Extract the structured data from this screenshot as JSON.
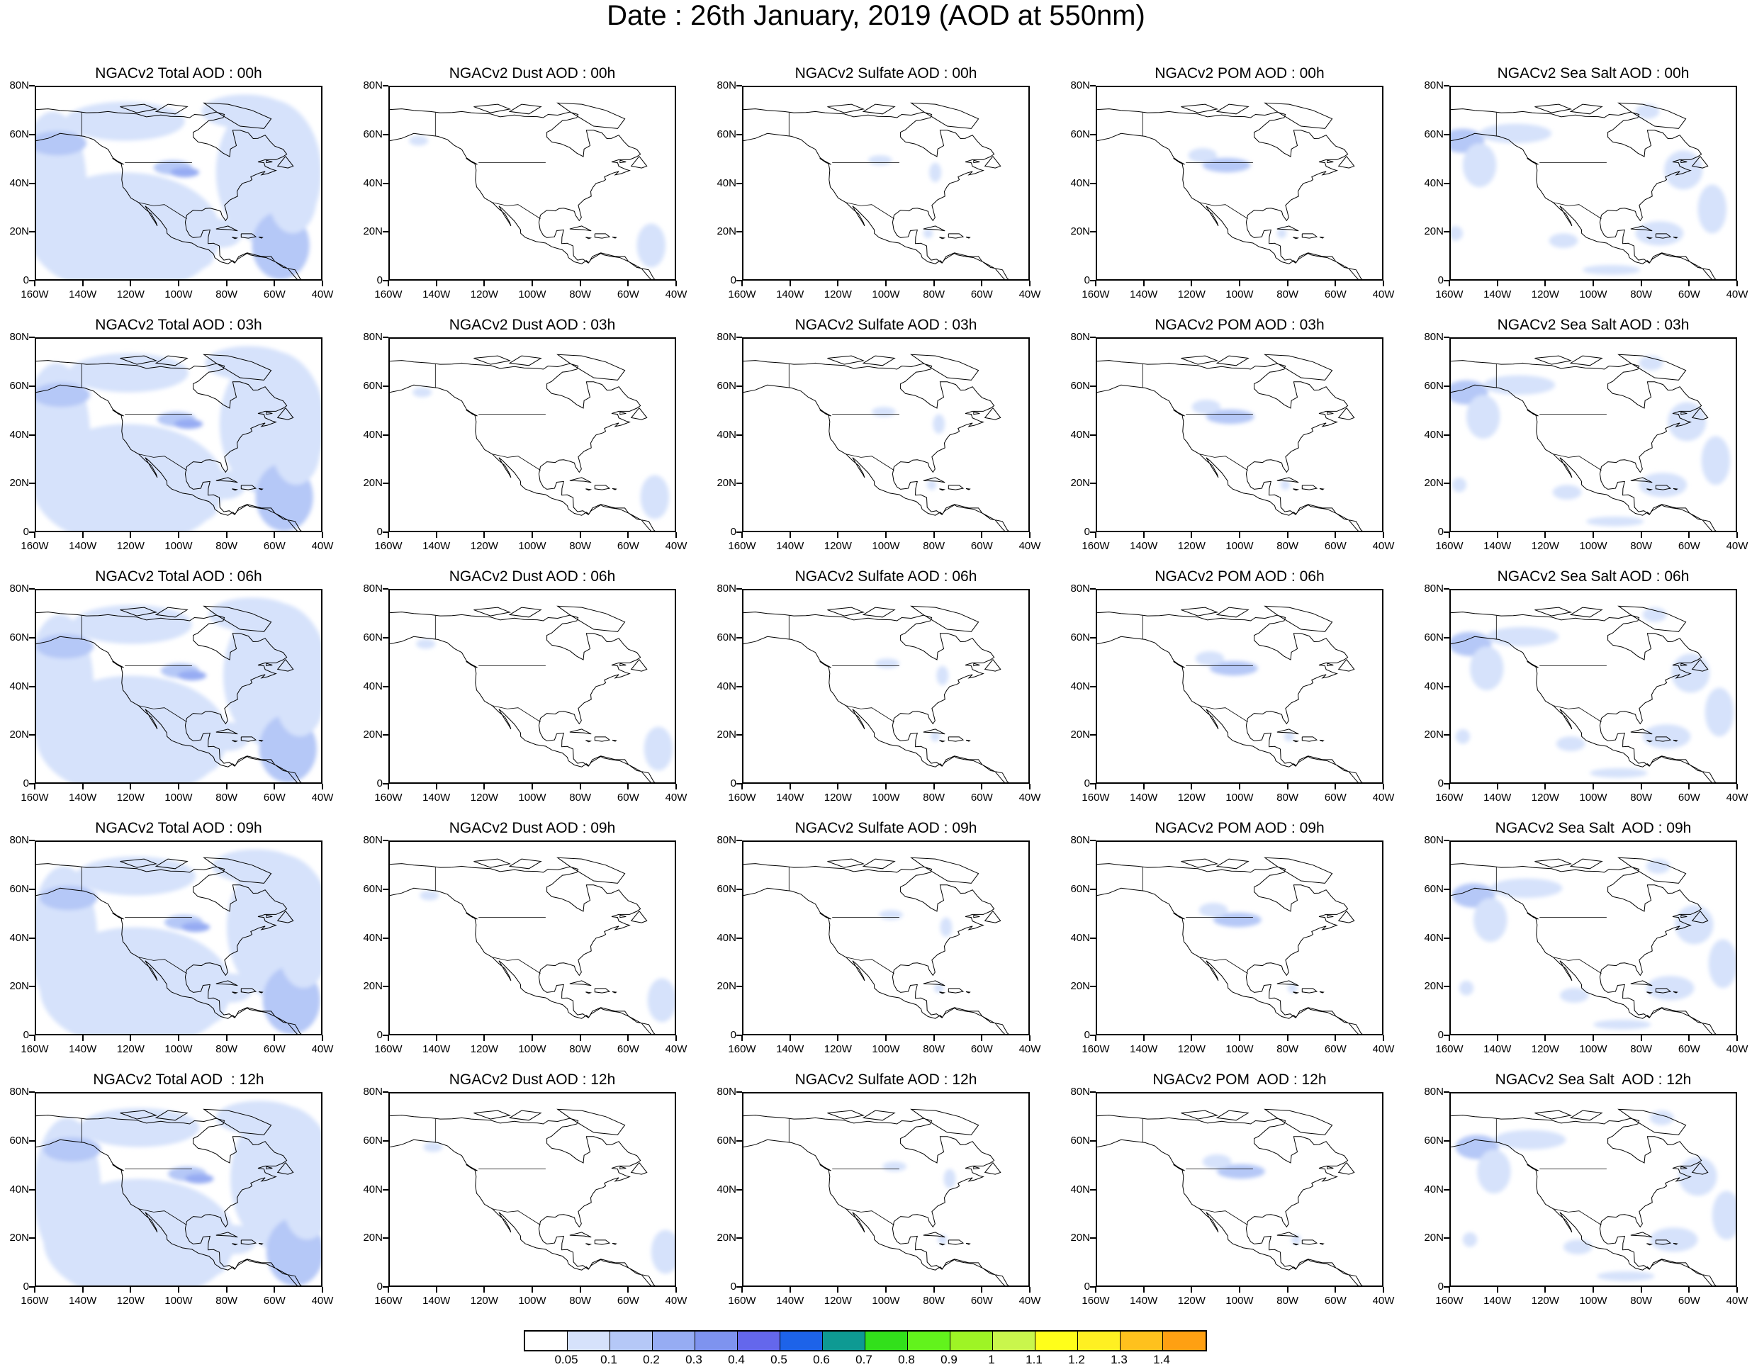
{
  "title": "Date : 26th January, 2019 (AOD at 550nm)",
  "panel_titles": [
    [
      "NGACv2 Total AOD : 00h",
      "NGACv2 Dust AOD : 00h",
      "NGACv2 Sulfate AOD : 00h",
      "NGACv2 POM AOD : 00h",
      "NGACv2 Sea Salt AOD : 00h"
    ],
    [
      "NGACv2 Total AOD : 03h",
      "NGACv2 Dust AOD : 03h",
      "NGACv2 Sulfate AOD : 03h",
      "NGACv2 POM AOD : 03h",
      "NGACv2 Sea Salt AOD : 03h"
    ],
    [
      "NGACv2 Total AOD : 06h",
      "NGACv2 Dust AOD : 06h",
      "NGACv2 Sulfate AOD : 06h",
      "NGACv2 POM AOD : 06h",
      "NGACv2 Sea Salt AOD : 06h"
    ],
    [
      "NGACv2 Total AOD : 09h",
      "NGACv2 Dust AOD : 09h",
      "NGACv2 Sulfate AOD : 09h",
      "NGACv2 POM AOD : 09h",
      "NGACv2 Sea Salt  AOD : 09h"
    ],
    [
      "NGACv2 Total AOD  : 12h",
      "NGACv2 Dust AOD : 12h",
      "NGACv2 Sulfate AOD : 12h",
      "NGACv2 POM  AOD : 12h",
      "NGACv2 Sea Salt  AOD : 12h"
    ]
  ],
  "lat_labels": [
    "80N",
    "60N",
    "40N",
    "20N",
    "0"
  ],
  "lon_labels": [
    "160W",
    "140W",
    "120W",
    "100W",
    "80W",
    "60W",
    "40W"
  ],
  "map_extent": {
    "lon_min": -160,
    "lon_max": -40,
    "lat_min": 0,
    "lat_max": 80
  },
  "colorbar": {
    "labels": [
      "0.05",
      "0.1",
      "0.2",
      "0.3",
      "0.4",
      "0.5",
      "0.6",
      "0.7",
      "0.8",
      "0.9",
      "1",
      "1.1",
      "1.2",
      "1.3",
      "1.4"
    ],
    "colors": [
      "#ffffff",
      "#d6e2fb",
      "#b5c8f7",
      "#96acf3",
      "#7e93ef",
      "#6467ec",
      "#1d63e9",
      "#0e9a93",
      "#32e01b",
      "#62f31c",
      "#9ef425",
      "#c9f64c",
      "#fffe1a",
      "#fff022",
      "#ffc11d",
      "#ffa012",
      "#ff7c0a",
      "#ff2e1a"
    ]
  },
  "species": [
    "Total",
    "Dust",
    "Sulfate",
    "POM",
    "Sea Salt"
  ]
}
